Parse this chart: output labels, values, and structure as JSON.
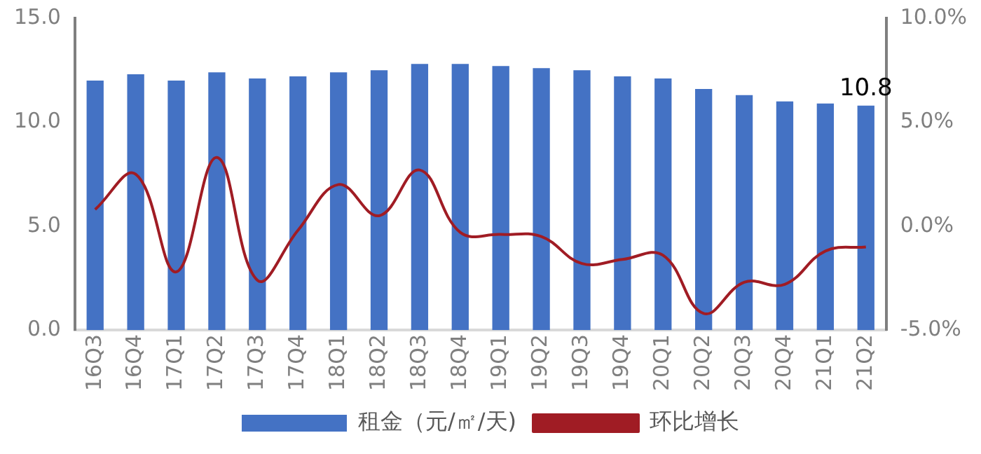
{
  "chart_data": {
    "type": "bar",
    "categories": [
      "16Q3",
      "16Q4",
      "17Q1",
      "17Q2",
      "17Q3",
      "17Q4",
      "18Q1",
      "18Q2",
      "18Q3",
      "18Q4",
      "19Q1",
      "19Q2",
      "19Q3",
      "19Q4",
      "20Q1",
      "20Q2",
      "20Q3",
      "20Q4",
      "21Q1",
      "21Q2"
    ],
    "series": [
      {
        "name": "租金（元/㎡/天)",
        "color": "#4472c4",
        "values": [
          12.0,
          12.3,
          12.0,
          12.4,
          12.1,
          12.2,
          12.4,
          12.5,
          12.8,
          12.8,
          12.7,
          12.6,
          12.5,
          12.2,
          12.1,
          11.6,
          11.3,
          11.0,
          10.9,
          10.8
        ],
        "value_labels": [
          null,
          null,
          null,
          null,
          null,
          null,
          null,
          null,
          null,
          null,
          null,
          null,
          null,
          null,
          null,
          null,
          null,
          null,
          null,
          "10.8"
        ]
      },
      {
        "name": "环比增长",
        "type": "line",
        "axis": "y2",
        "color": "#a01c24",
        "values": [
          0.8,
          2.5,
          -2.2,
          3.3,
          -2.6,
          -0.2,
          2.0,
          0.5,
          2.7,
          -0.3,
          -0.4,
          -0.5,
          -1.8,
          -1.6,
          -1.4,
          -4.2,
          -2.7,
          -2.8,
          -1.2,
          -1.0
        ]
      }
    ],
    "ylim": [
      0,
      15
    ],
    "yticks": [
      {
        "value": 0,
        "label": "0.0"
      },
      {
        "value": 5,
        "label": "5.0"
      },
      {
        "value": 10,
        "label": "10.0"
      },
      {
        "value": 15,
        "label": "15.0"
      }
    ],
    "y2lim": [
      -5,
      10
    ],
    "y2ticks": [
      {
        "value": -5,
        "label": "-5.0%"
      },
      {
        "value": 0,
        "label": "0.0%"
      },
      {
        "value": 5,
        "label": "5.0%"
      },
      {
        "value": 10,
        "label": "10.0%"
      }
    ],
    "grid": false,
    "legend": "bottom",
    "marker": "none",
    "line_style": "solid"
  }
}
